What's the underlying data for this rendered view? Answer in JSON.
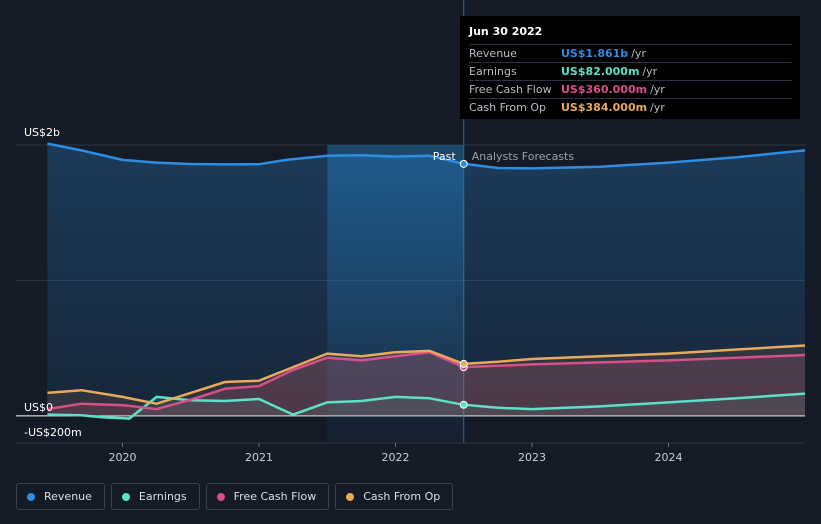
{
  "chart_data": {
    "type": "line",
    "divider_label_past": "Past",
    "divider_label_forecast": "Analysts Forecasts",
    "divider_x": 2022.5,
    "highlight_start": 2021.5,
    "y_tick_labels": {
      "top": "US$2b",
      "zero": "US$0",
      "neg": "-US$200m"
    },
    "ylim": [
      -200,
      2000
    ],
    "xlim": [
      2019.22,
      2025.0
    ],
    "x_ticks": [
      {
        "label": "2020",
        "x": 2020.0
      },
      {
        "label": "2021",
        "x": 2021.0
      },
      {
        "label": "2022",
        "x": 2022.0
      },
      {
        "label": "2023",
        "x": 2023.0
      },
      {
        "label": "2024",
        "x": 2024.0
      }
    ],
    "series": [
      {
        "name": "Revenue",
        "key": "revenue",
        "color": "#2e8de0",
        "points": [
          [
            2019.45,
            2010
          ],
          [
            2019.7,
            1960
          ],
          [
            2020.0,
            1890
          ],
          [
            2020.25,
            1870
          ],
          [
            2020.5,
            1860
          ],
          [
            2020.75,
            1857
          ],
          [
            2021.0,
            1858
          ],
          [
            2021.2,
            1890
          ],
          [
            2021.5,
            1920
          ],
          [
            2021.75,
            1925
          ],
          [
            2022.0,
            1915
          ],
          [
            2022.25,
            1920
          ],
          [
            2022.5,
            1861
          ],
          [
            2022.75,
            1830
          ],
          [
            2023.0,
            1827
          ],
          [
            2023.5,
            1840
          ],
          [
            2024.0,
            1870
          ],
          [
            2024.5,
            1910
          ],
          [
            2025.0,
            1960
          ]
        ]
      },
      {
        "name": "Earnings",
        "key": "earnings",
        "color": "#5ce1c6",
        "points": [
          [
            2019.45,
            10
          ],
          [
            2019.7,
            5
          ],
          [
            2019.85,
            -10
          ],
          [
            2020.05,
            -20
          ],
          [
            2020.25,
            140
          ],
          [
            2020.5,
            115
          ],
          [
            2020.75,
            110
          ],
          [
            2021.0,
            125
          ],
          [
            2021.25,
            10
          ],
          [
            2021.5,
            100
          ],
          [
            2021.75,
            110
          ],
          [
            2022.0,
            140
          ],
          [
            2022.25,
            130
          ],
          [
            2022.5,
            82
          ],
          [
            2022.75,
            60
          ],
          [
            2023.0,
            50
          ],
          [
            2023.5,
            70
          ],
          [
            2024.0,
            100
          ],
          [
            2024.5,
            130
          ],
          [
            2025.0,
            165
          ]
        ]
      },
      {
        "name": "Free Cash Flow",
        "key": "fcf",
        "color": "#d94f8a",
        "points": [
          [
            2019.45,
            50
          ],
          [
            2019.7,
            90
          ],
          [
            2020.0,
            80
          ],
          [
            2020.25,
            50
          ],
          [
            2020.5,
            120
          ],
          [
            2020.75,
            200
          ],
          [
            2021.0,
            220
          ],
          [
            2021.25,
            340
          ],
          [
            2021.5,
            430
          ],
          [
            2021.75,
            410
          ],
          [
            2022.0,
            440
          ],
          [
            2022.25,
            470
          ],
          [
            2022.5,
            360
          ],
          [
            2022.75,
            370
          ],
          [
            2023.0,
            380
          ],
          [
            2023.5,
            395
          ],
          [
            2024.0,
            410
          ],
          [
            2024.5,
            430
          ],
          [
            2025.0,
            450
          ]
        ]
      },
      {
        "name": "Cash From Op",
        "key": "cfo",
        "color": "#e8a95c",
        "points": [
          [
            2019.45,
            170
          ],
          [
            2019.7,
            190
          ],
          [
            2020.0,
            140
          ],
          [
            2020.25,
            90
          ],
          [
            2020.5,
            170
          ],
          [
            2020.75,
            250
          ],
          [
            2021.0,
            260
          ],
          [
            2021.25,
            360
          ],
          [
            2021.5,
            460
          ],
          [
            2021.75,
            440
          ],
          [
            2022.0,
            470
          ],
          [
            2022.25,
            480
          ],
          [
            2022.5,
            384
          ],
          [
            2022.75,
            400
          ],
          [
            2023.0,
            420
          ],
          [
            2023.5,
            440
          ],
          [
            2024.0,
            460
          ],
          [
            2024.5,
            490
          ],
          [
            2025.0,
            520
          ]
        ]
      }
    ]
  },
  "tooltip": {
    "date": "Jun 30 2022",
    "rows": [
      {
        "label": "Revenue",
        "value": "US$1.861b",
        "unit": "/yr",
        "color": "#2e8de0"
      },
      {
        "label": "Earnings",
        "value": "US$82.000m",
        "unit": "/yr",
        "color": "#5ce1c6"
      },
      {
        "label": "Free Cash Flow",
        "value": "US$360.000m",
        "unit": "/yr",
        "color": "#d94f8a"
      },
      {
        "label": "Cash From Op",
        "value": "US$384.000m",
        "unit": "/yr",
        "color": "#e8a95c"
      }
    ]
  },
  "legend": [
    {
      "label": "Revenue",
      "color": "#2e8de0"
    },
    {
      "label": "Earnings",
      "color": "#5ce1c6"
    },
    {
      "label": "Free Cash Flow",
      "color": "#d94f8a"
    },
    {
      "label": "Cash From Op",
      "color": "#e8a95c"
    }
  ]
}
